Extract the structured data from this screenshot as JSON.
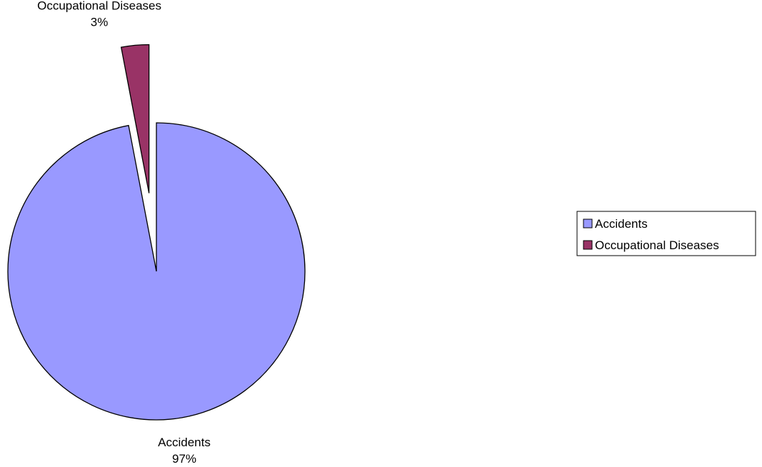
{
  "chart_data": {
    "type": "pie",
    "title": "",
    "slices": [
      {
        "name": "Accidents",
        "value": 97,
        "label": "97%",
        "color": "#9999FF",
        "exploded": false
      },
      {
        "name": "Occupational Diseases",
        "value": 3,
        "label": "3%",
        "color": "#993366",
        "exploded": true
      }
    ],
    "start_angle": "12 o'clock",
    "direction": "clockwise",
    "legend": {
      "position": "right",
      "items": [
        {
          "label": "Accidents",
          "color": "#9999FF"
        },
        {
          "label": "Occupational Diseases",
          "color": "#993366"
        }
      ]
    }
  }
}
